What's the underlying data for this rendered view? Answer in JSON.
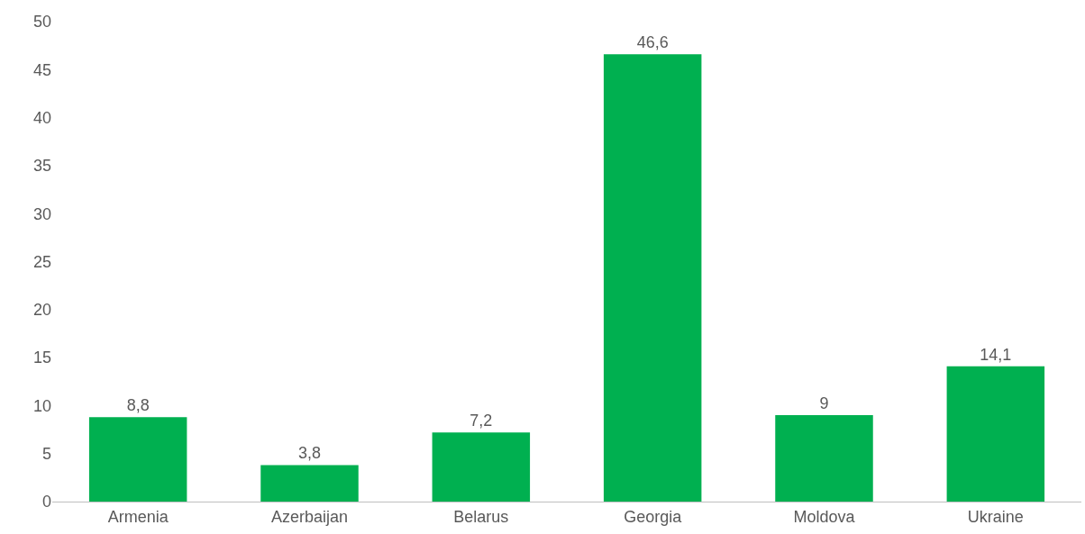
{
  "chart_data": {
    "type": "bar",
    "categories": [
      "Armenia",
      "Azerbaijan",
      "Belarus",
      "Georgia",
      "Moldova",
      "Ukraine"
    ],
    "values": [
      8.8,
      3.8,
      7.2,
      46.6,
      9,
      14.1
    ],
    "value_labels": [
      "8,8",
      "3,8",
      "7,2",
      "46,6",
      "9",
      "14,1"
    ],
    "color": "#00b050",
    "ylim": [
      0,
      50
    ],
    "yticks": [
      0,
      5,
      10,
      15,
      20,
      25,
      30,
      35,
      40,
      45,
      50
    ],
    "grid": false
  }
}
